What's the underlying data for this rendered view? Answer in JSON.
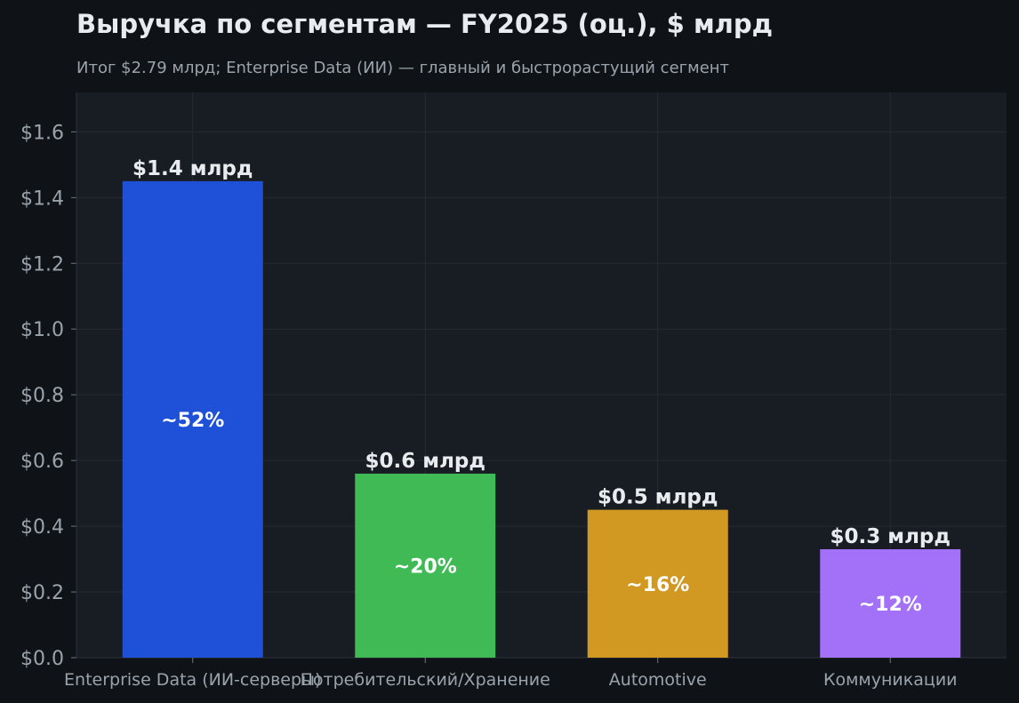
{
  "chart_data": {
    "type": "bar",
    "title": "Выручка по сегментам — FY2025 (оц.), $ млрд",
    "subtitle": "Итог $2.79 млрд; Enterprise Data (ИИ) — главный и быстрорастущий сегмент",
    "xlabel": "",
    "ylabel": "",
    "ylim": [
      0,
      1.72
    ],
    "yticks": [
      0.0,
      0.2,
      0.4,
      0.6,
      0.8,
      1.0,
      1.2,
      1.4,
      1.6
    ],
    "ytick_labels": [
      "$0.0",
      "$0.2",
      "$0.4",
      "$0.6",
      "$0.8",
      "$1.0",
      "$1.2",
      "$1.4",
      "$1.6"
    ],
    "grid": true,
    "categories": [
      "Enterprise Data (ИИ-серверы)",
      "Потребительский/Хранение",
      "Automotive",
      "Коммуникации"
    ],
    "values": [
      1.45,
      0.56,
      0.45,
      0.33
    ],
    "value_labels": [
      "$1.4 млрд",
      "$0.6 млрд",
      "$0.5 млрд",
      "$0.3 млрд"
    ],
    "share_labels": [
      "~52%",
      "~20%",
      "~16%",
      "~12%"
    ],
    "colors": [
      "#1f51d8",
      "#3fba54",
      "#d29922",
      "#a371f7"
    ]
  },
  "theme": {
    "page_bg": "#0f1317",
    "plot_bg": "#181c23",
    "grid_color": "#262b33",
    "tick_text": "#9aa3ab",
    "label_text": "#e8ecef",
    "inner_text": "#ffffff"
  }
}
